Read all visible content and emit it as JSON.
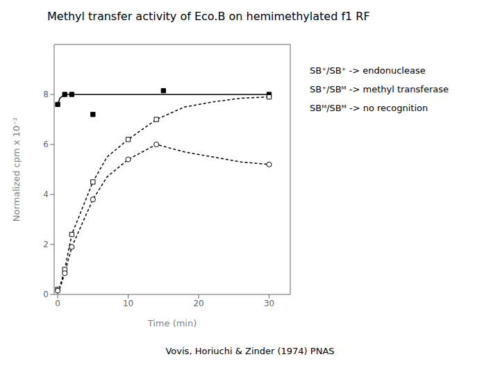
{
  "chart_data": {
    "type": "scatter",
    "title": "Methyl transfer activity of Eco.B on hemimethylated f1 RF",
    "x_label": "Time (min)",
    "y_label": "Normalized cpm x 10⁻²",
    "xlim": [
      -0.5,
      33
    ],
    "ylim": [
      0,
      10
    ],
    "xticks": [
      0,
      10,
      20,
      30
    ],
    "yticks": [
      0,
      2,
      4,
      6,
      8
    ],
    "grid": false,
    "series": [
      {
        "type": "line",
        "color": "#000000",
        "line_style": "solid",
        "x": [
          0,
          0.3,
          1,
          2,
          5,
          10,
          15,
          20,
          25,
          30
        ],
        "values": [
          7.6,
          7.85,
          8.0,
          8.0,
          8.0,
          8.0,
          8.0,
          8.0,
          8.0,
          8.0
        ]
      },
      {
        "type": "scatter",
        "color": "#000000",
        "marker": "filled_square",
        "x": [
          0,
          1,
          2,
          5,
          15,
          30
        ],
        "values": [
          7.6,
          8.0,
          8.0,
          7.2,
          8.15,
          8.0
        ]
      },
      {
        "type": "line",
        "color": "#000000",
        "line_style": "dashed",
        "x": [
          0,
          0.5,
          1,
          2,
          5,
          7,
          10,
          14,
          18,
          22,
          26,
          30
        ],
        "values": [
          0.05,
          0.5,
          1.0,
          2.4,
          4.5,
          5.5,
          6.2,
          7.0,
          7.5,
          7.7,
          7.85,
          7.9
        ]
      },
      {
        "type": "scatter",
        "color": "#000000",
        "marker": "open_square",
        "x": [
          0,
          1,
          2,
          5,
          10,
          14,
          30
        ],
        "values": [
          0.2,
          1.0,
          2.4,
          4.5,
          6.2,
          7.0,
          7.9
        ]
      },
      {
        "type": "line",
        "color": "#000000",
        "line_style": "dashed",
        "x": [
          0,
          0.5,
          1,
          2,
          5,
          7,
          10,
          14,
          18,
          22,
          26,
          30
        ],
        "values": [
          0.03,
          0.4,
          0.85,
          1.9,
          3.8,
          4.7,
          5.4,
          6.0,
          5.7,
          5.5,
          5.3,
          5.2
        ]
      },
      {
        "type": "scatter",
        "color": "#000000",
        "marker": "open_circle",
        "x": [
          0,
          1,
          2,
          5,
          10,
          14,
          30
        ],
        "values": [
          0.15,
          0.85,
          1.9,
          3.8,
          5.4,
          6.0,
          5.2
        ]
      }
    ],
    "annotations": [
      "SB⁺/SB⁺ -> endonuclease",
      "SB⁺/SBᴹ -> methyl transferase",
      "SBᴹ/SBᴹ -> no recognition"
    ],
    "caption": "Vovis, Horiuchi & Zinder (1974) PNAS"
  }
}
